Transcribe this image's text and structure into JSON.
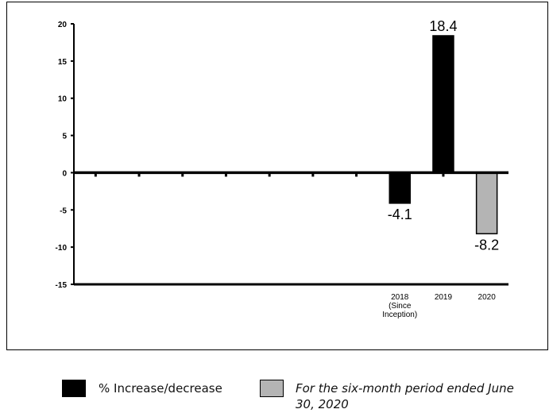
{
  "chart_data": {
    "type": "bar",
    "title": "",
    "xlabel": "",
    "ylabel": "",
    "ylim": [
      -15,
      20
    ],
    "yticks": [
      "20",
      "15",
      "10",
      "5",
      "0",
      "-5",
      "-10",
      "-15"
    ],
    "categories": [
      "",
      "",
      "",
      "",
      "",
      "",
      "",
      "2018\n(Since\nInception)",
      "2019",
      "2020"
    ],
    "series": [
      {
        "name": "% Increase/decrease",
        "color": "#000000",
        "values": [
          null,
          null,
          null,
          null,
          null,
          null,
          null,
          -4.1,
          18.4,
          null
        ]
      },
      {
        "name": "For the six-month period ended June 30, 2020",
        "color": "#b4b4b4",
        "values": [
          null,
          null,
          null,
          null,
          null,
          null,
          null,
          null,
          null,
          -8.2
        ]
      }
    ],
    "data_labels": [
      "-4.1",
      "18.4",
      "-8.2"
    ],
    "grid": false,
    "legend_position": "bottom"
  },
  "legend": {
    "item1_label": "% Increase/decrease",
    "item2_label": "For the six-month period ended June 30, 2020",
    "item1_color": "#000000",
    "item2_color": "#b4b4b4"
  }
}
